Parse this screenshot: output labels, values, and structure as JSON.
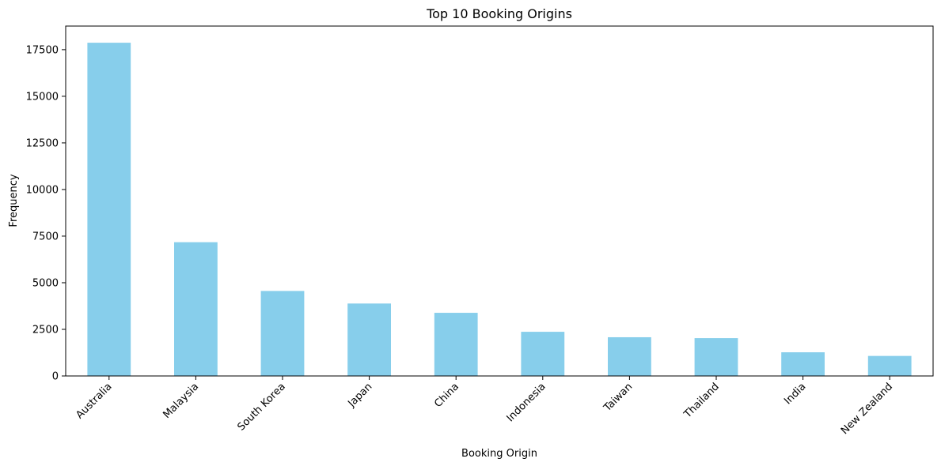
{
  "chart_data": {
    "type": "bar",
    "title": "Top 10 Booking Origins",
    "xlabel": "Booking Origin",
    "ylabel": "Frequency",
    "categories": [
      "Australia",
      "Malaysia",
      "South Korea",
      "Japan",
      "China",
      "Indonesia",
      "Taiwan",
      "Thailand",
      "India",
      "New Zealand"
    ],
    "values": [
      17872,
      7174,
      4559,
      3885,
      3387,
      2369,
      2077,
      2030,
      1270,
      1074
    ],
    "ylim": [
      0,
      18766
    ],
    "yticks": [
      0,
      2500,
      5000,
      7500,
      10000,
      12500,
      15000,
      17500
    ],
    "bar_color": "#87ceeb",
    "grid": false,
    "legend": "none"
  }
}
